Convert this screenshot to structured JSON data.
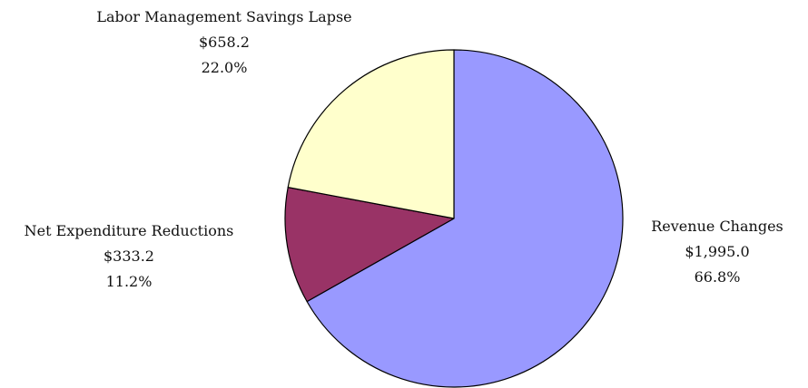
{
  "chart_data": {
    "type": "pie",
    "slices": [
      {
        "name": "Revenue Changes",
        "amount": "$1,995.0",
        "percent": "66.8%",
        "value": 1995.0,
        "color": "#9999FF"
      },
      {
        "name": "Net Expenditure Reductions",
        "amount": "$333.2",
        "percent": "11.2%",
        "value": 333.2,
        "color": "#993366"
      },
      {
        "name": "Labor Management Savings Lapse",
        "amount": "$658.2",
        "percent": "22.0%",
        "value": 658.2,
        "color": "#FFFFCC"
      }
    ],
    "start_angle": "12 o'clock",
    "direction": "clockwise",
    "slice_outline": "#000000"
  }
}
